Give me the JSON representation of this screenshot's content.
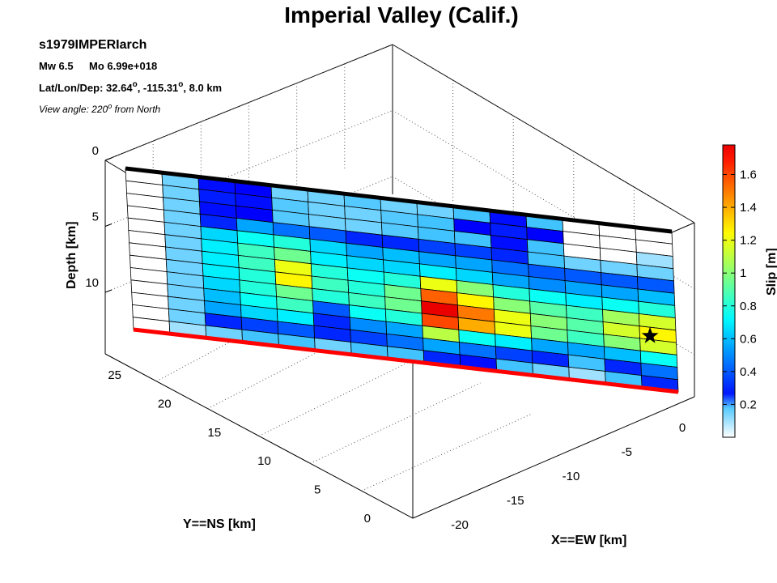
{
  "info": {
    "event_id": "s1979IMPERIarch",
    "mw_label": "Mw 6.5",
    "mo_label": "Mo 6.99e+018",
    "latlon_prefix": "Lat/Lon/Dep: 32.64",
    "lon_text": ", -115.31",
    "dep_text": ", 8.0 km",
    "degree_mark": "o",
    "view_prefix": "View angle: 220",
    "view_suffix": " from North"
  },
  "chart_data": {
    "type": "heatmap",
    "title": "Imperial Valley (Calif.)",
    "xlabel": "X==EW [km]",
    "ylabel": "Y==NS [km]",
    "zlabel": "Depth [km]",
    "colorbar_label": "Slip [m]",
    "x_ticks": [
      0,
      -5,
      -10,
      -15,
      -20
    ],
    "y_ticks": [
      0,
      5,
      10,
      15,
      20,
      25
    ],
    "z_ticks": [
      0,
      5,
      10
    ],
    "colorbar_ticks": [
      0.2,
      0.4,
      0.6,
      0.8,
      1,
      1.2,
      1.4,
      1.6
    ],
    "colorbar_range": [
      0,
      1.78
    ],
    "grid": true,
    "view_azimuth": 220,
    "rows_shown_by": "fault patches along strip (left to right) and depth (top to bottom)",
    "slip": [
      [
        0,
        0.15,
        0.25,
        0.22,
        0.15,
        0.15,
        0.18,
        0.15,
        0.15,
        0.2,
        0.25,
        0.2,
        0,
        0,
        0
      ],
      [
        0,
        0.15,
        0.28,
        0.25,
        0.18,
        0.15,
        0.15,
        0.18,
        0.2,
        0.22,
        0.28,
        0.22,
        0,
        0,
        0
      ],
      [
        0,
        0.15,
        0.25,
        0.22,
        0.18,
        0.15,
        0.15,
        0.18,
        0.2,
        0.2,
        0.25,
        0.2,
        0,
        0,
        0.1
      ],
      [
        0,
        0.15,
        0.3,
        0.55,
        0.45,
        0.4,
        0.3,
        0.3,
        0.35,
        0.35,
        0.3,
        0.2,
        0.15,
        0.15,
        0.15
      ],
      [
        0,
        0.15,
        0.65,
        0.75,
        0.8,
        0.65,
        0.55,
        0.6,
        0.55,
        0.55,
        0.45,
        0.4,
        0.4,
        0.4,
        0.4
      ],
      [
        0,
        0.15,
        0.7,
        0.85,
        0.95,
        0.7,
        0.65,
        0.65,
        0.7,
        0.65,
        0.55,
        0.5,
        0.55,
        0.55,
        0.6
      ],
      [
        0,
        0.15,
        0.7,
        0.85,
        1.2,
        0.8,
        0.75,
        0.8,
        1.2,
        1.0,
        0.8,
        0.75,
        0.7,
        0.75,
        0.8
      ],
      [
        0,
        0.15,
        0.7,
        0.8,
        1.25,
        0.85,
        0.8,
        0.95,
        1.55,
        1.25,
        1.0,
        0.9,
        0.85,
        1.05,
        1.15
      ],
      [
        0,
        0.15,
        0.65,
        0.8,
        0.95,
        0.8,
        0.85,
        0.95,
        1.78,
        1.5,
        1.2,
        1.0,
        0.9,
        1.15,
        1.25
      ],
      [
        0,
        0.15,
        0.6,
        0.75,
        0.85,
        0.4,
        0.75,
        0.8,
        1.6,
        1.4,
        1.2,
        0.95,
        0.85,
        1.0,
        1.15
      ],
      [
        0,
        0.15,
        0.55,
        0.65,
        0.7,
        0.3,
        0.5,
        0.55,
        1.1,
        0.75,
        0.7,
        0.55,
        0.55,
        0.6,
        0.75
      ],
      [
        0,
        0.15,
        0.3,
        0.35,
        0.4,
        0.3,
        0.35,
        0.45,
        0.55,
        0.45,
        0.35,
        0.3,
        0.2,
        0.3,
        0.45
      ],
      [
        0,
        0.1,
        0.15,
        0.2,
        0.2,
        0.15,
        0.2,
        0.2,
        0.3,
        0.25,
        0.2,
        0.15,
        0.1,
        0.2,
        0.3
      ]
    ],
    "hypocenter": {
      "strike_index": 14,
      "depth_index": 8.2,
      "marker": "star"
    },
    "top_edge_color": "#000000",
    "bottom_edge_color": "#ff0000"
  }
}
